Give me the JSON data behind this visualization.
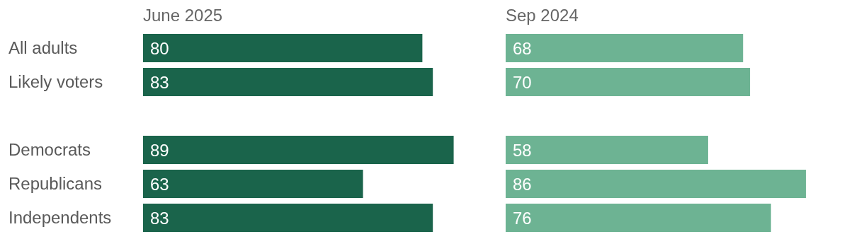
{
  "chart_data": [
    {
      "type": "bar",
      "orientation": "horizontal",
      "title": "June 2025",
      "categories": [
        "All adults",
        "Likely voters",
        null,
        "Democrats",
        "Republicans",
        "Independents"
      ],
      "values": [
        80,
        83,
        null,
        89,
        63,
        83
      ],
      "color": "#1a644b",
      "data_labels": true,
      "tick_labels": "y"
    },
    {
      "type": "bar",
      "orientation": "horizontal",
      "title": "Sep 2024",
      "categories": [
        null,
        null,
        null,
        null,
        null,
        null
      ],
      "values": [
        68,
        70,
        null,
        58,
        86,
        76
      ],
      "color": "#6db393",
      "data_labels": true,
      "tick_labels": false
    }
  ]
}
